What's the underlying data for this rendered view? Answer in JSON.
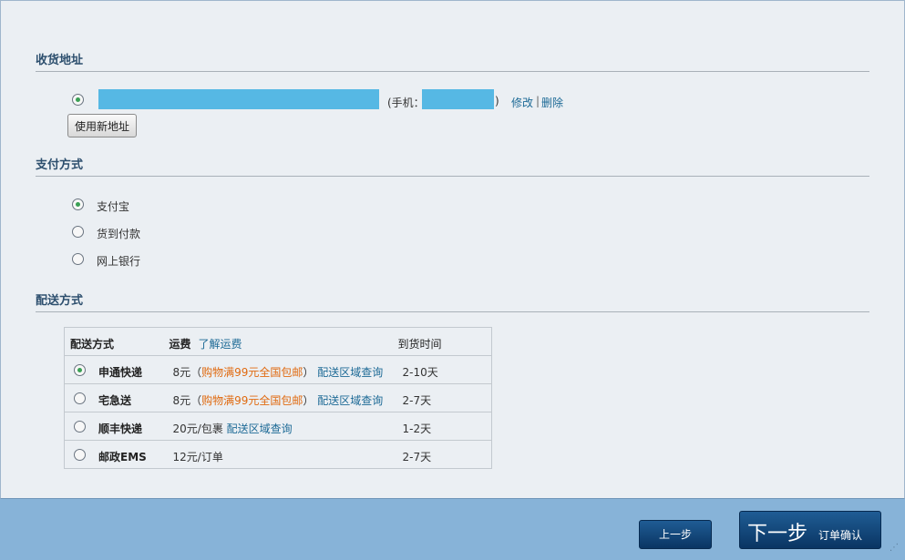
{
  "address": {
    "title": "收货地址",
    "phone_prefix": "(手机：",
    "phone_suffix": ")",
    "edit_label": "修改",
    "separator": "|",
    "delete_label": "删除",
    "new_address_button": "使用新地址",
    "selected": true
  },
  "payment": {
    "title": "支付方式",
    "options": [
      {
        "label": "支付宝",
        "selected": true
      },
      {
        "label": "货到付款",
        "selected": false
      },
      {
        "label": "网上银行",
        "selected": false
      }
    ]
  },
  "shipping": {
    "title": "配送方式",
    "headers": {
      "method": "配送方式",
      "fee": "运费",
      "fee_link": "了解运费",
      "time": "到货时间"
    },
    "rows": [
      {
        "name": "申通快递",
        "fee": "8元（",
        "promo": "购物满99元全国包邮",
        "fee_end": "）",
        "link": "配送区域查询",
        "time": "2-10天",
        "selected": true
      },
      {
        "name": "宅急送",
        "fee": "8元（",
        "promo": "购物满99元全国包邮",
        "fee_end": "）",
        "link": "配送区域查询",
        "time": "2-7天",
        "selected": false
      },
      {
        "name": "顺丰快递",
        "fee": "20元/包裹",
        "promo": "",
        "fee_end": "",
        "link": "配送区域查询",
        "time": "1-2天",
        "selected": false
      },
      {
        "name": "邮政EMS",
        "fee": "12元/订单",
        "promo": "",
        "fee_end": "",
        "link": "",
        "time": "2-7天",
        "selected": false
      }
    ]
  },
  "footer": {
    "prev_label": "上一步",
    "next_label": "下一步",
    "next_sub": "订单确认"
  },
  "colors": {
    "accent": "#56b8e4",
    "footer": "#87b3d8",
    "button": "#0a3563",
    "promo": "#e06a10",
    "link": "#1d6a96"
  }
}
